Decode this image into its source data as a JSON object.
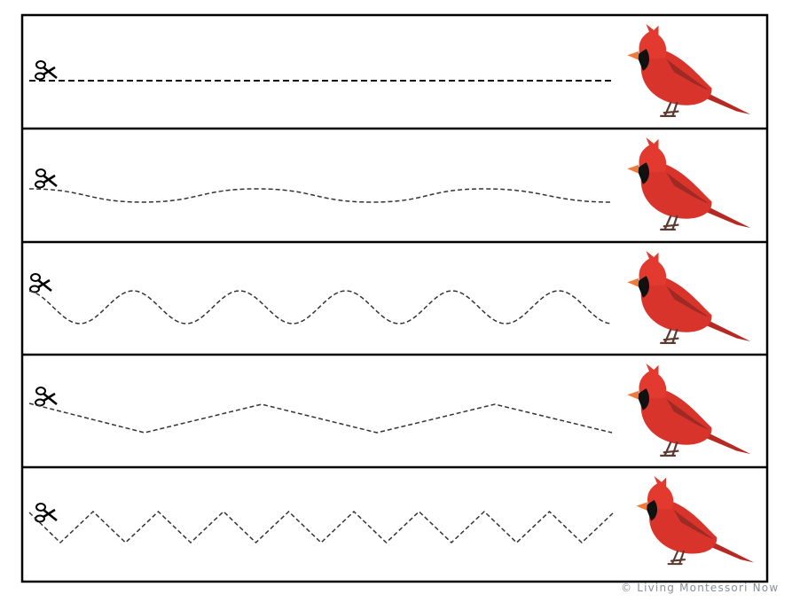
{
  "worksheet": {
    "rows": [
      {
        "line_type": "straight",
        "icon": "scissors-icon",
        "picture": "cardinal-bird"
      },
      {
        "line_type": "gentle-wave",
        "icon": "scissors-icon",
        "picture": "cardinal-bird"
      },
      {
        "line_type": "wave",
        "icon": "scissors-icon",
        "picture": "cardinal-bird"
      },
      {
        "line_type": "wide-zigzag",
        "icon": "scissors-icon",
        "picture": "cardinal-bird"
      },
      {
        "line_type": "zigzag",
        "icon": "scissors-icon",
        "picture": "cardinal-bird"
      }
    ],
    "colors": {
      "border": "#000000",
      "line": "#222222",
      "bird": "#d9342b"
    }
  },
  "footer": {
    "copyright": "© Living Montessori Now"
  }
}
